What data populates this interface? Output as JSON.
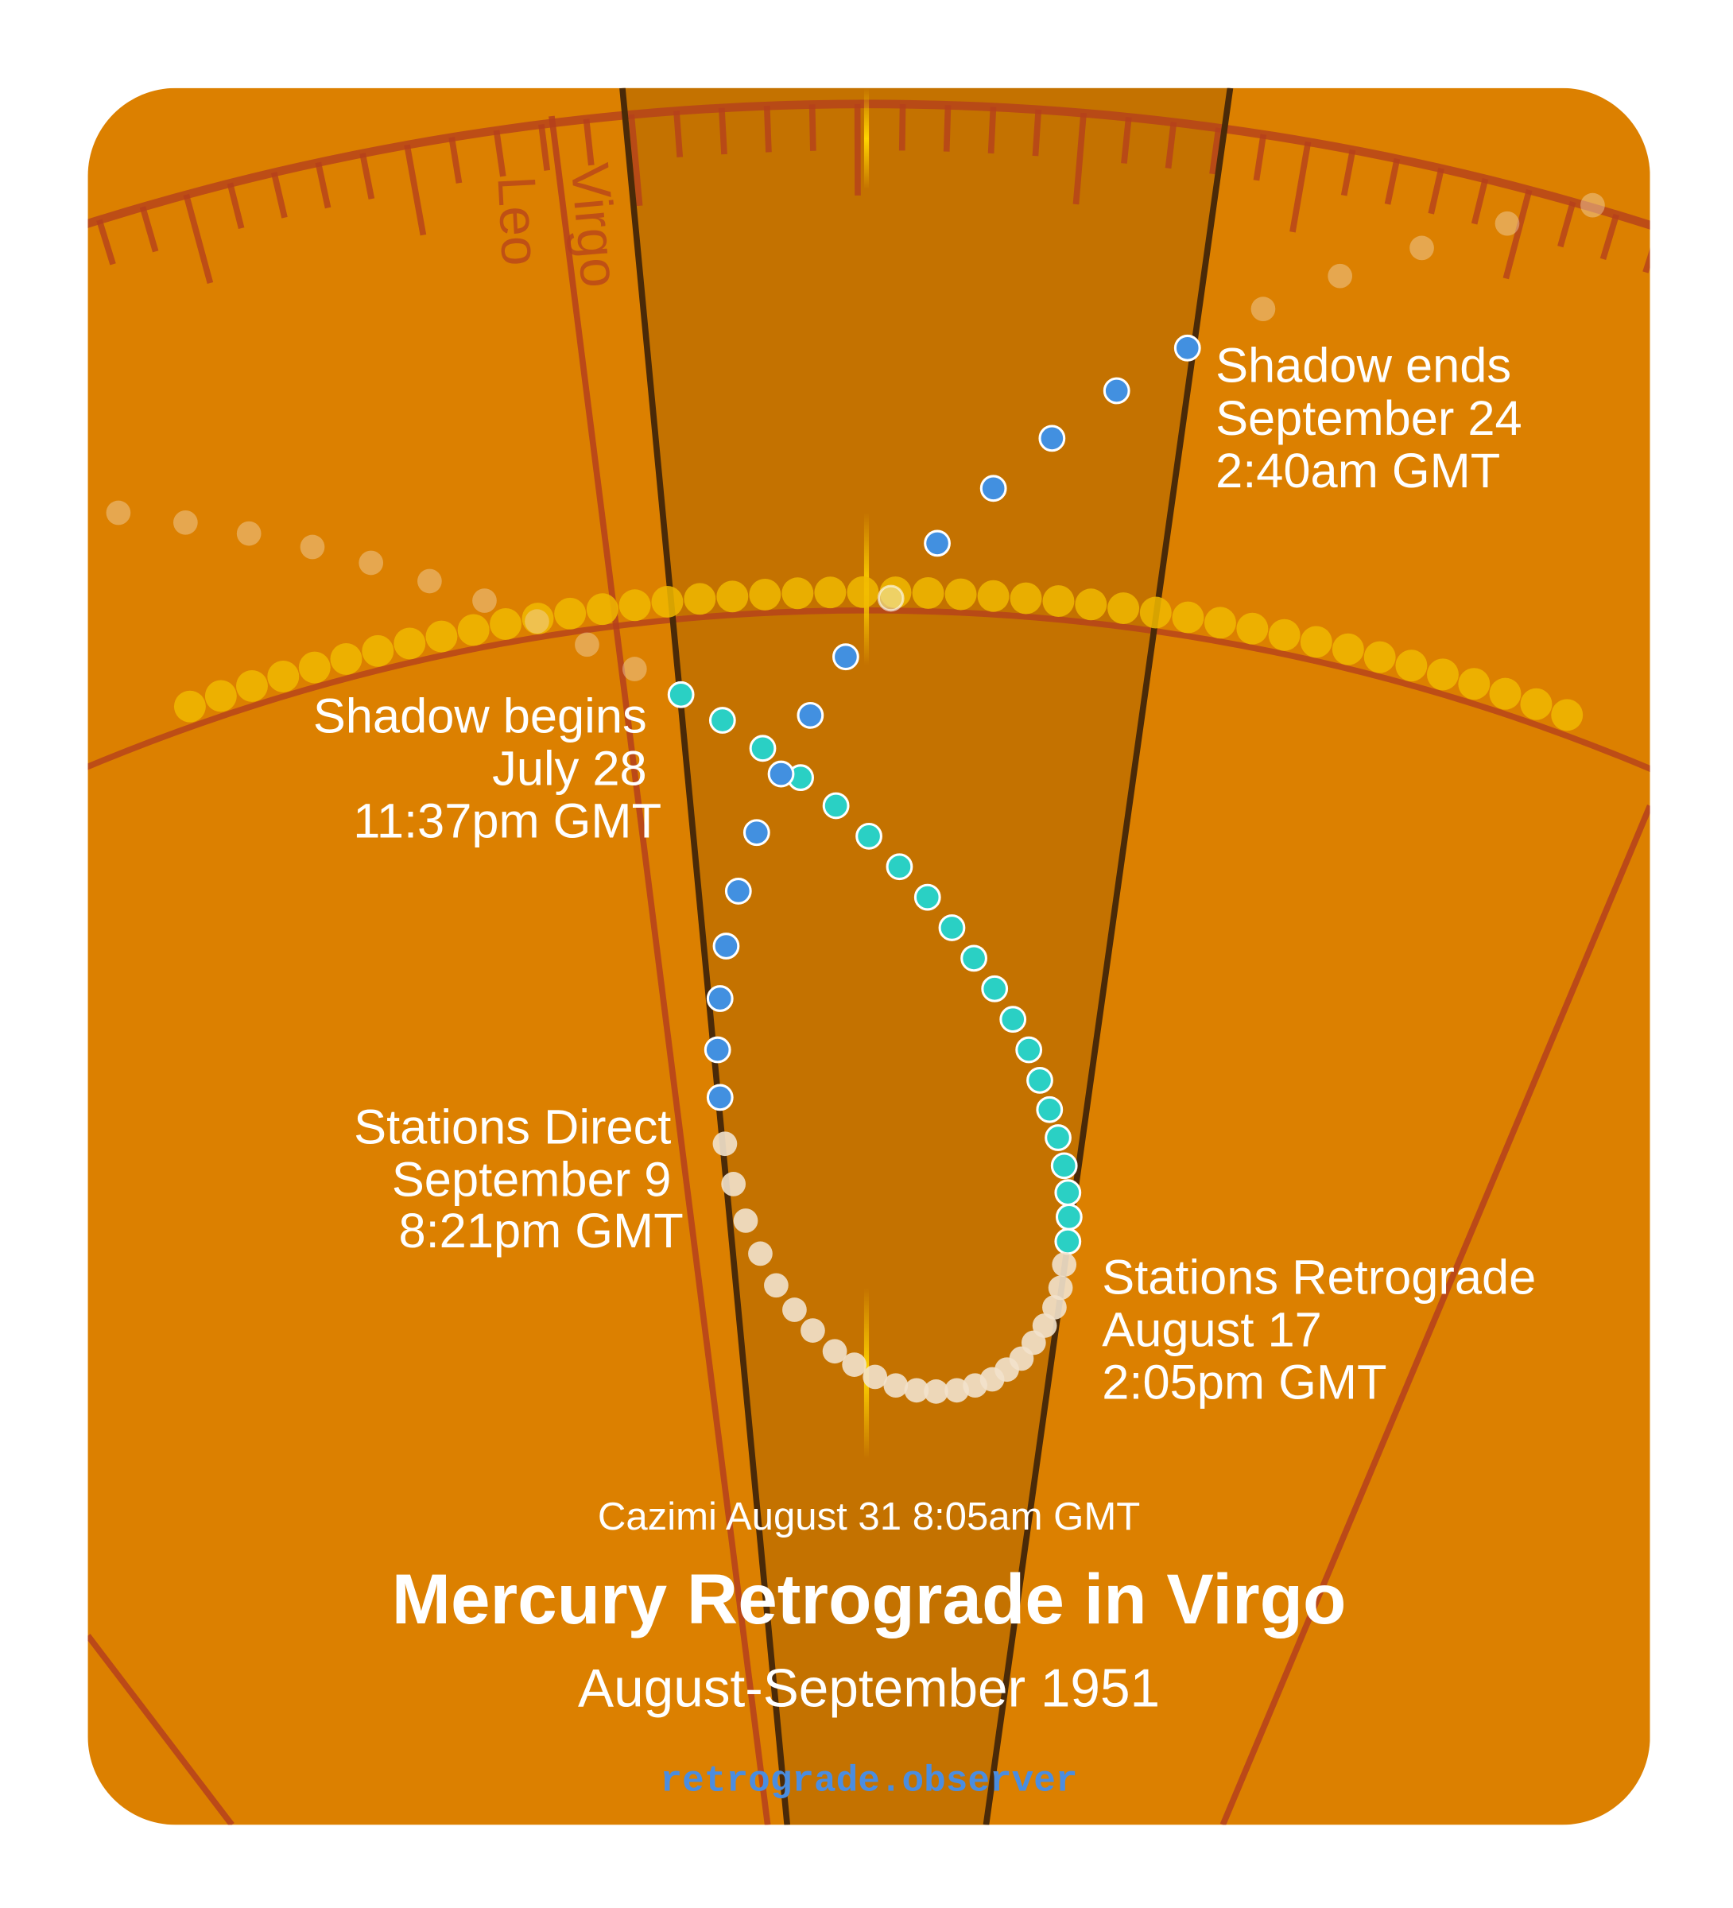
{
  "signs": {
    "left": "Leo",
    "right": "Virgo"
  },
  "events": {
    "shadow_ends": {
      "title": "Shadow ends",
      "date": "September 24",
      "time": "2:40am GMT"
    },
    "shadow_begins": {
      "title": "Shadow begins",
      "date": "July 28",
      "time": "11:37pm GMT"
    },
    "stations_direct": {
      "title": "Stations Direct",
      "date": "September 9",
      "time": "8:21pm GMT"
    },
    "stations_retrograde": {
      "title": "Stations Retrograde",
      "date": "August 17",
      "time": "2:05pm GMT"
    },
    "cazimi": "Cazimi August 31 8:05am GMT"
  },
  "title": "Mercury Retrograde in Virgo",
  "subtitle": "August-September 1951",
  "footer": "retrograde.observer",
  "colors": {
    "background": "#dc8000",
    "shadow_zone": "#c47200",
    "zodiac_lines": "#b5401c",
    "sun": "#f0b800",
    "pre_shadow": "#2ad0c4",
    "retrograde": "#f2e2cc",
    "post_shadow": "#4290e0",
    "footer": "#4a8de0"
  }
}
